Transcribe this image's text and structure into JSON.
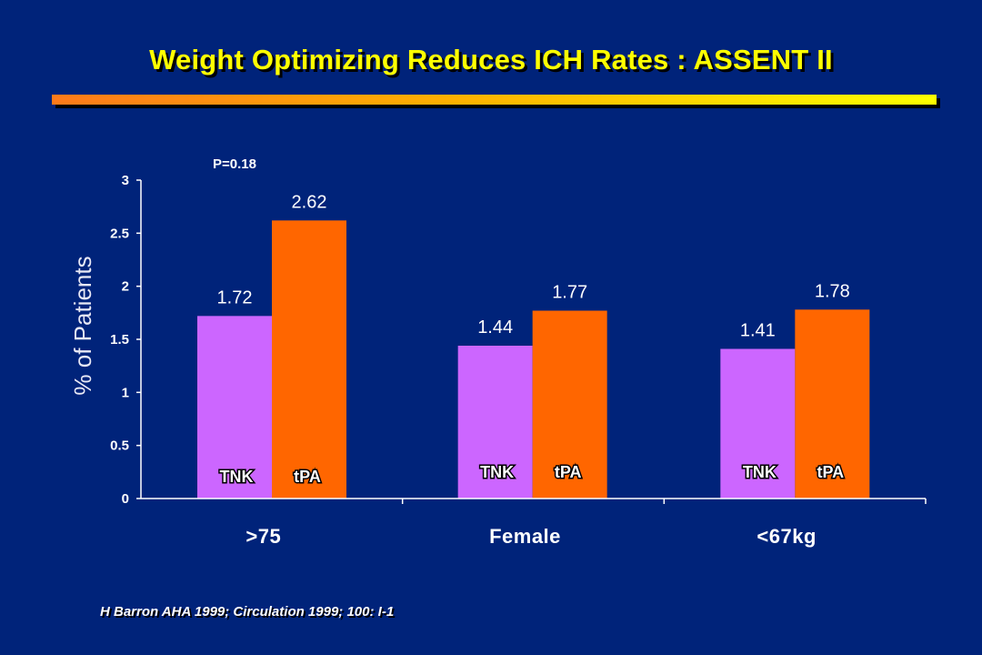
{
  "slide": {
    "title": "Weight Optimizing Reduces ICH Rates : ASSENT II",
    "footnote": "H Barron AHA 1999; Circulation 1999; 100: I-1"
  },
  "colors": {
    "background": "#00237a",
    "title": "#ffff00",
    "tnk": "#cc66ff",
    "tpa": "#ff6600",
    "axis": "#ffffff"
  },
  "chart_data": {
    "type": "bar",
    "categories": [
      ">75",
      "Female",
      "<67kg"
    ],
    "series": [
      {
        "name": "TNK",
        "values": [
          1.72,
          1.44,
          1.41
        ]
      },
      {
        "name": "tPA",
        "values": [
          2.62,
          1.77,
          1.78
        ]
      }
    ],
    "value_labels": [
      [
        "1.72",
        "1.44",
        "1.41"
      ],
      [
        "2.62",
        "1.77",
        "1.78"
      ]
    ],
    "ylabel": "% of Patients",
    "xlabel": "",
    "ylim": [
      0,
      3
    ],
    "yticks": [
      "0",
      "0.5",
      "1",
      "1.5",
      "2",
      "2.5",
      "3"
    ],
    "annotation": "P=0.18",
    "grid": false,
    "legend": "series names printed inside bars"
  }
}
